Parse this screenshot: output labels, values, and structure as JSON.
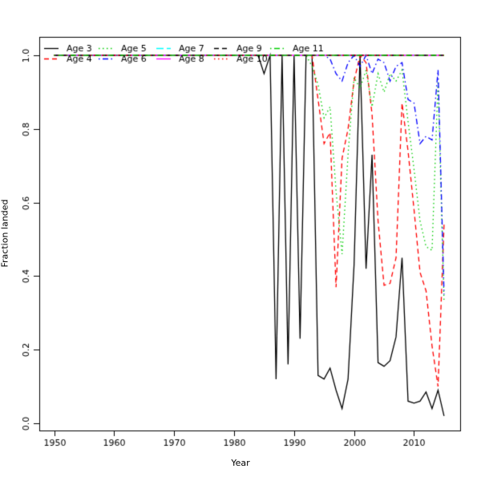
{
  "figure": {
    "xlabel": "Year",
    "ylabel": "Fraction landed"
  },
  "chart_data": {
    "type": "line",
    "title": "",
    "xlabel": "Year",
    "ylabel": "Fraction landed",
    "x_start_year": 1950,
    "x_end_year": 2015,
    "x_step": 1,
    "x_ticks": [
      1950,
      1960,
      1970,
      1980,
      1990,
      2000,
      2010
    ],
    "y_ticks": [
      "0.0",
      "0.2",
      "0.4",
      "0.6",
      "0.8",
      "1.0"
    ],
    "xlim": [
      1947.4,
      2017.6
    ],
    "ylim": [
      -0.045,
      1.05
    ],
    "grid": false,
    "legend_position": "top-left",
    "legend_ncol": 5,
    "series": [
      {
        "name": "Age 3",
        "color": "#000000",
        "linetype": "solid",
        "values": [
          1,
          1,
          1,
          1,
          1,
          1,
          1,
          1,
          1,
          1,
          1,
          1,
          1,
          1,
          1,
          1,
          1,
          1,
          1,
          1,
          1,
          1,
          1,
          1,
          1,
          1,
          1,
          1,
          1,
          1,
          1,
          1,
          1,
          1,
          1,
          0.95,
          1,
          0.12,
          1,
          0.16,
          1,
          0.23,
          1,
          1,
          0.13,
          0.12,
          0.15,
          0.09,
          0.04,
          0.12,
          0.43,
          1,
          0.42,
          0.73,
          0.165,
          0.155,
          0.17,
          0.235,
          0.45,
          0.06,
          0.055,
          0.06,
          0.085,
          0.04,
          0.09,
          0.02
        ]
      },
      {
        "name": "Age 4",
        "color": "#FF0000",
        "linetype": "dashed",
        "values": [
          1,
          1,
          1,
          1,
          1,
          1,
          1,
          1,
          1,
          1,
          1,
          1,
          1,
          1,
          1,
          1,
          1,
          1,
          1,
          1,
          1,
          1,
          1,
          1,
          1,
          1,
          1,
          1,
          1,
          1,
          1,
          1,
          1,
          1,
          1,
          1,
          1,
          1,
          1,
          1,
          1,
          1,
          1,
          1,
          0.88,
          0.76,
          0.79,
          0.37,
          0.72,
          0.8,
          0.93,
          1,
          0.98,
          0.84,
          0.55,
          0.375,
          0.38,
          0.45,
          0.87,
          0.74,
          0.58,
          0.41,
          0.36,
          0.21,
          0.1,
          0.54
        ]
      },
      {
        "name": "Age 5",
        "color": "#00CD00",
        "linetype": "dotted",
        "values": [
          1,
          1,
          1,
          1,
          1,
          1,
          1,
          1,
          1,
          1,
          1,
          1,
          1,
          1,
          1,
          1,
          1,
          1,
          1,
          1,
          1,
          1,
          1,
          1,
          1,
          1,
          1,
          1,
          1,
          1,
          1,
          1,
          1,
          1,
          1,
          1,
          1,
          1,
          1,
          1,
          1,
          1,
          1,
          0.97,
          0.92,
          0.83,
          0.86,
          0.63,
          0.46,
          0.73,
          0.94,
          0.91,
          0.96,
          0.86,
          0.95,
          0.9,
          0.95,
          0.93,
          0.96,
          0.82,
          0.69,
          0.55,
          0.48,
          0.47,
          0.93,
          0.33
        ]
      },
      {
        "name": "Age 6",
        "color": "#0000FF",
        "linetype": "dashdot",
        "values": [
          1,
          1,
          1,
          1,
          1,
          1,
          1,
          1,
          1,
          1,
          1,
          1,
          1,
          1,
          1,
          1,
          1,
          1,
          1,
          1,
          1,
          1,
          1,
          1,
          1,
          1,
          1,
          1,
          1,
          1,
          1,
          1,
          1,
          1,
          1,
          1,
          1,
          1,
          1,
          1,
          1,
          1,
          1,
          1,
          1,
          1,
          0.99,
          0.95,
          0.93,
          0.98,
          1,
          0.97,
          1,
          0.95,
          0.99,
          0.98,
          0.93,
          0.97,
          0.98,
          0.88,
          0.87,
          0.76,
          0.78,
          0.77,
          0.96,
          0.35
        ]
      },
      {
        "name": "Age 7",
        "color": "#00FFFF",
        "linetype": "longdash",
        "constant": 1.0
      },
      {
        "name": "Age 8",
        "color": "#FF00FF",
        "linetype": "solid",
        "constant": 1.0
      },
      {
        "name": "Age 9",
        "color": "#000000",
        "linetype": "dashed",
        "constant": 1.0
      },
      {
        "name": "Age 10",
        "color": "#FF0000",
        "linetype": "dotted",
        "constant": 1.0
      },
      {
        "name": "Age 11",
        "color": "#00CD00",
        "linetype": "dashdot",
        "constant": 1.0
      }
    ]
  }
}
